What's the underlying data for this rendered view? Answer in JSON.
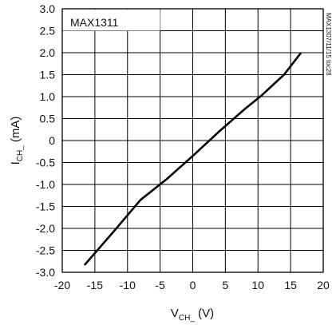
{
  "chart_data": {
    "type": "line",
    "title": "",
    "legend": "MAX1311",
    "side_note": "MAX1307/11/15 toc28",
    "xlabel": {
      "main": "V",
      "sub": "CH_",
      "suffix": " (V)"
    },
    "ylabel": {
      "main": "I",
      "sub": "CH_",
      "suffix": " (mA)"
    },
    "xlim": [
      -20,
      20
    ],
    "ylim": [
      -3.0,
      3.0
    ],
    "x_ticks": [
      "-20",
      "-15",
      "-10",
      "-5",
      "0",
      "5",
      "10",
      "15",
      "20"
    ],
    "y_ticks": [
      "3.0",
      "2.5",
      "2.0",
      "1.5",
      "1.0",
      "0.5",
      "0",
      "-0.5",
      "-1.0",
      "-1.5",
      "-2.0",
      "-2.5",
      "-3.0"
    ],
    "grid": true,
    "series": [
      {
        "color": "#000000",
        "x": [
          -16.5,
          -12,
          -8,
          -4,
          0,
          4,
          8,
          10.5,
          14,
          16.5
        ],
        "y": [
          -2.82,
          -2.05,
          -1.35,
          -0.88,
          -0.35,
          0.2,
          0.72,
          1.02,
          1.5,
          1.98
        ]
      }
    ]
  }
}
